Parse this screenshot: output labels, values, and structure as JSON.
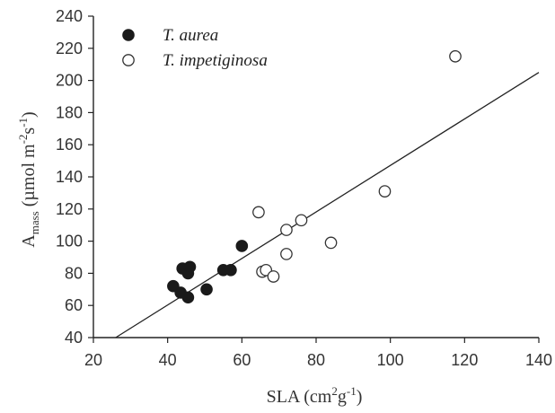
{
  "chart_data": {
    "type": "scatter",
    "xlabel_main": "SLA (cm",
    "xlabel_sup1": "2",
    "xlabel_mid": "g",
    "xlabel_sup2": "-1",
    "xlabel_end": ")",
    "ylabel_main": "A",
    "ylabel_sub": "mass",
    "ylabel_unit": " (µmol m",
    "ylabel_sup1": "-2",
    "ylabel_mid": "s",
    "ylabel_sup2": "-1",
    "ylabel_end": ")",
    "xlim": [
      20,
      140
    ],
    "ylim": [
      40,
      240
    ],
    "x_ticks": [
      "20",
      "40",
      "60",
      "80",
      "100",
      "120",
      "140"
    ],
    "y_ticks": [
      "40",
      "60",
      "80",
      "100",
      "120",
      "140",
      "160",
      "180",
      "200",
      "220",
      "240"
    ],
    "legend_position": "top-left",
    "series": [
      {
        "name": "T. aurea",
        "marker": "filled-circle",
        "color": "#1a1a1a",
        "points": [
          [
            41.5,
            72
          ],
          [
            43.5,
            68
          ],
          [
            44,
            83
          ],
          [
            45.5,
            80
          ],
          [
            45.5,
            65
          ],
          [
            46,
            84
          ],
          [
            50.5,
            70
          ],
          [
            55,
            82
          ],
          [
            57,
            82
          ],
          [
            60,
            97
          ]
        ]
      },
      {
        "name": "T. impetiginosa",
        "marker": "open-circle",
        "color": "#333333",
        "points": [
          [
            64.5,
            118
          ],
          [
            65.5,
            81
          ],
          [
            66.5,
            82
          ],
          [
            68.5,
            78
          ],
          [
            72,
            107
          ],
          [
            72,
            92
          ],
          [
            76,
            113
          ],
          [
            84,
            99
          ],
          [
            98.5,
            131
          ],
          [
            117.5,
            215
          ]
        ]
      }
    ],
    "regression_line": {
      "x": [
        26,
        140
      ],
      "y": [
        40,
        205
      ]
    }
  }
}
